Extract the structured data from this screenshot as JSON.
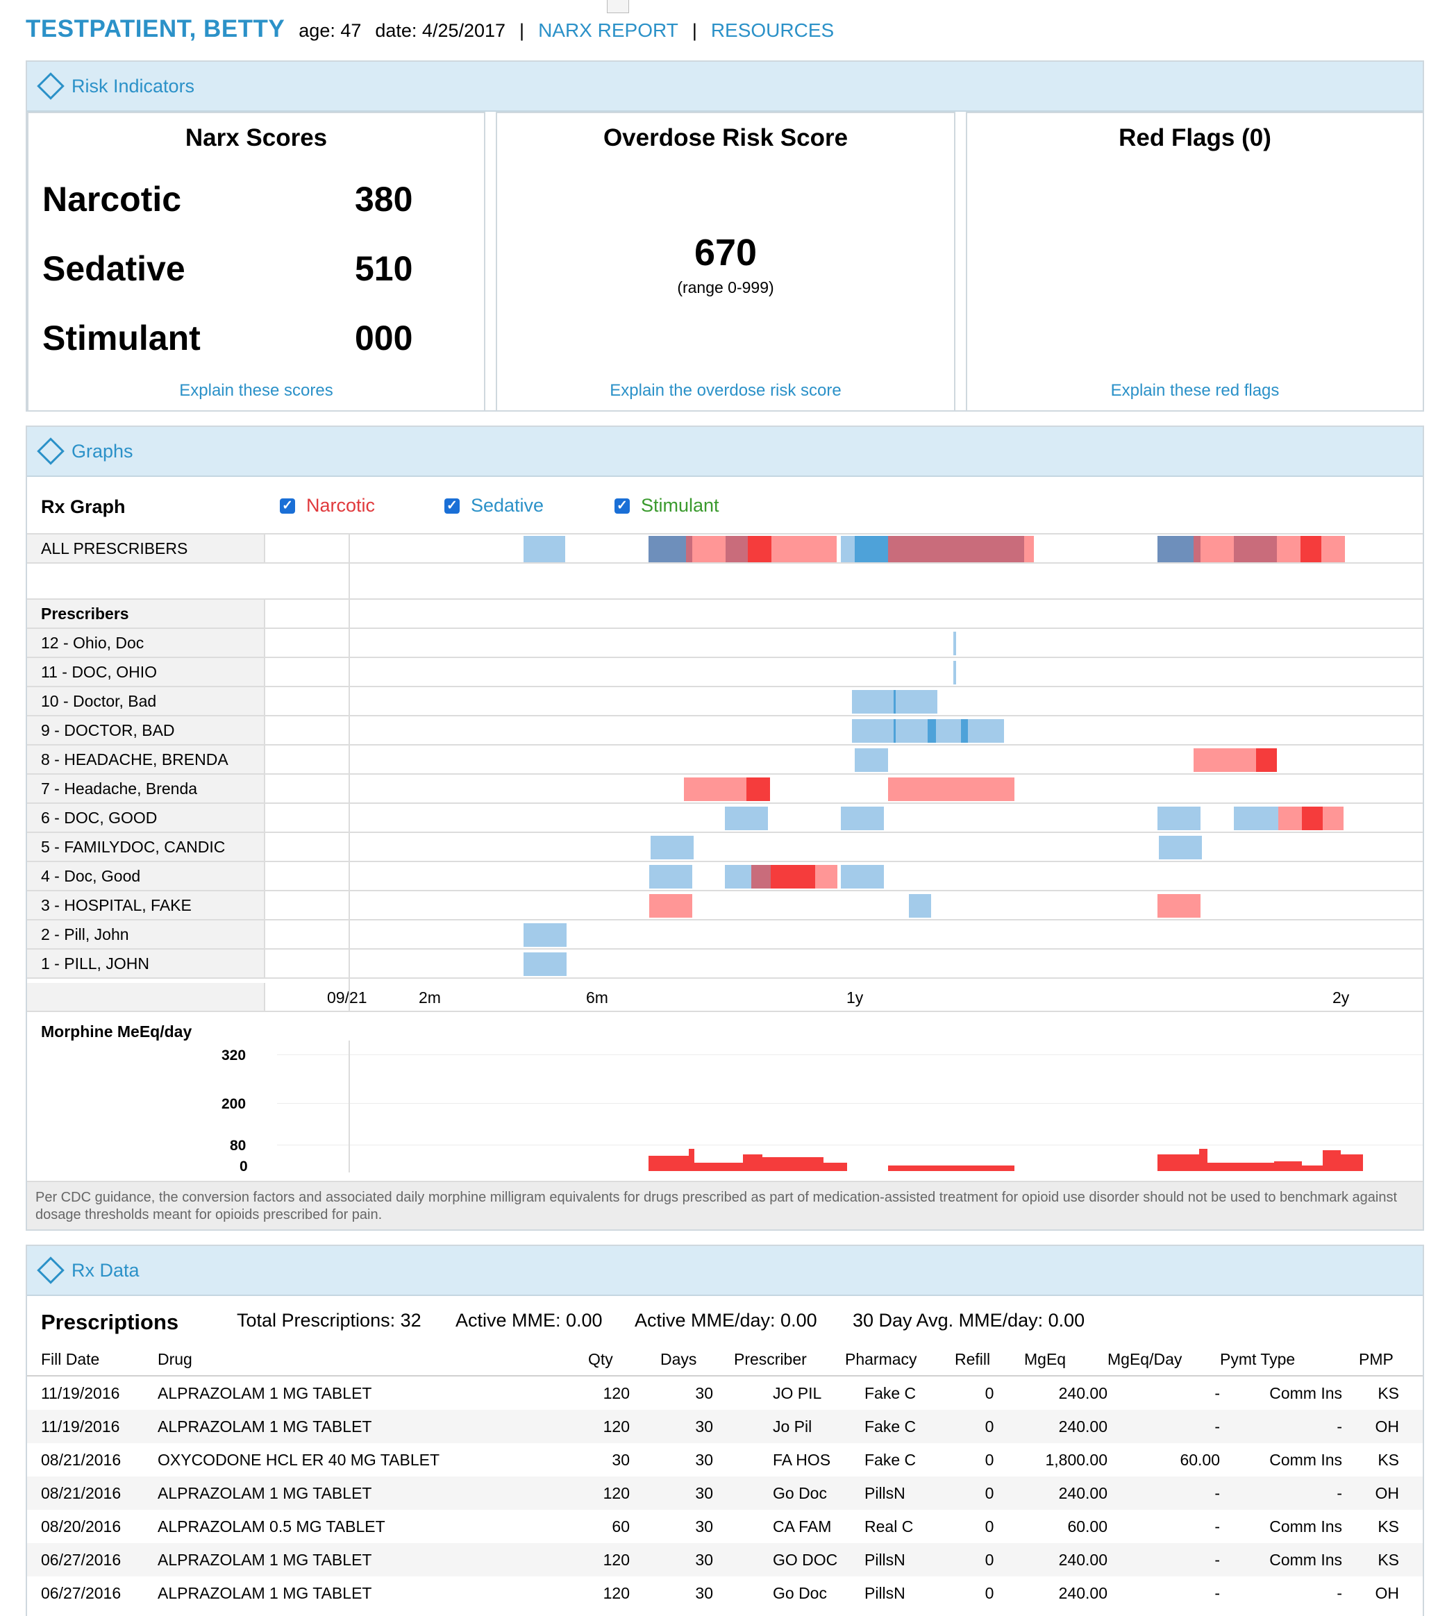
{
  "header": {
    "patient_name": "TESTPATIENT, BETTY",
    "age_label": "age: 47",
    "date_label": "date: 4/25/2017",
    "sep": "|",
    "nav": [
      "NARX REPORT",
      "RESOURCES"
    ]
  },
  "risk": {
    "section_title": "Risk Indicators",
    "narx": {
      "title": "Narx Scores",
      "rows": [
        {
          "label": "Narcotic",
          "value": "380"
        },
        {
          "label": "Sedative",
          "value": "510"
        },
        {
          "label": "Stimulant",
          "value": "000"
        }
      ],
      "explain": "Explain these scores"
    },
    "overdose": {
      "title": "Overdose Risk Score",
      "value": "670",
      "range": "(range 0-999)",
      "explain": "Explain the overdose risk score"
    },
    "redflags": {
      "title": "Red Flags (0)",
      "explain": "Explain these red flags"
    }
  },
  "graphs": {
    "section_title": "Graphs",
    "rx_graph_label": "Rx Graph",
    "filters": [
      {
        "label": "Narcotic",
        "checked": true,
        "color": "#e0393c"
      },
      {
        "label": "Sedative",
        "checked": true,
        "color": "#2b91c8"
      },
      {
        "label": "Stimulant",
        "checked": true,
        "color": "#3a9a2d"
      }
    ],
    "all_prescribers": "ALL PRESCRIBERS",
    "prescribers_header": "Prescribers",
    "prescribers": [
      "12 - Ohio, Doc",
      "11 - DOC, OHIO",
      "10 - Doctor, Bad",
      "9 - DOCTOR, BAD",
      "8 - HEADACHE, BRENDA",
      "7 - Headache, Brenda",
      "6 - DOC, GOOD",
      "5 - FAMILYDOC, CANDIC",
      "4 - Doc, Good",
      "3 - HOSPITAL, FAKE",
      "2 - Pill, John",
      "1 - PILL, JOHN"
    ],
    "time_ticks": [
      "09/21",
      "2m",
      "6m",
      "1y",
      "2y"
    ],
    "colors": {
      "sedative": "#a3cbea",
      "narcotic": "#ff9696",
      "narcotic_dark": "#f53c3c",
      "mixed": "#c96c7b"
    },
    "mme_label": "Morphine MeEq/day",
    "mme_ticks": [
      "320",
      "200",
      "80",
      "0"
    ],
    "note": "Per CDC guidance, the conversion factors and associated daily morphine milligram equivalents for drugs prescribed as part of medication-assisted treatment for opioid use disorder should not be used to benchmark against dosage thresholds meant for opioids prescribed for pain."
  },
  "rxdata": {
    "section_title": "Rx Data",
    "title": "Prescriptions",
    "stats": [
      "Total Prescriptions: 32",
      "Active MME: 0.00",
      "Active MME/day: 0.00",
      "30 Day Avg. MME/day: 0.00"
    ],
    "columns": [
      "Fill Date",
      "Drug",
      "Qty",
      "Days",
      "Prescriber",
      "Pharmacy",
      "Refill",
      "MgEq",
      "MgEq/Day",
      "Pymt Type",
      "PMP"
    ],
    "rows": [
      [
        "11/19/2016",
        "ALPRAZOLAM 1 MG TABLET",
        "120",
        "30",
        "JO PIL",
        "Fake C",
        "0",
        "240.00",
        "-",
        "Comm Ins",
        "KS"
      ],
      [
        "11/19/2016",
        "ALPRAZOLAM 1 MG TABLET",
        "120",
        "30",
        "Jo Pil",
        "Fake C",
        "0",
        "240.00",
        "-",
        "-",
        "OH"
      ],
      [
        "08/21/2016",
        "OXYCODONE HCL ER 40 MG TABLET",
        "30",
        "30",
        "FA HOS",
        "Fake C",
        "0",
        "1,800.00",
        "60.00",
        "Comm Ins",
        "KS"
      ],
      [
        "08/21/2016",
        "ALPRAZOLAM 1 MG TABLET",
        "120",
        "30",
        "Go Doc",
        "PillsN",
        "0",
        "240.00",
        "-",
        "-",
        "OH"
      ],
      [
        "08/20/2016",
        "ALPRAZOLAM 0.5 MG TABLET",
        "60",
        "30",
        "CA FAM",
        "Real C",
        "0",
        "60.00",
        "-",
        "Comm Ins",
        "KS"
      ],
      [
        "06/27/2016",
        "ALPRAZOLAM 1 MG TABLET",
        "120",
        "30",
        "GO DOC",
        "PillsN",
        "0",
        "240.00",
        "-",
        "Comm Ins",
        "KS"
      ],
      [
        "06/27/2016",
        "ALPRAZOLAM 1 MG TABLET",
        "120",
        "30",
        "Go Doc",
        "PillsN",
        "0",
        "240.00",
        "-",
        "-",
        "OH"
      ]
    ]
  }
}
